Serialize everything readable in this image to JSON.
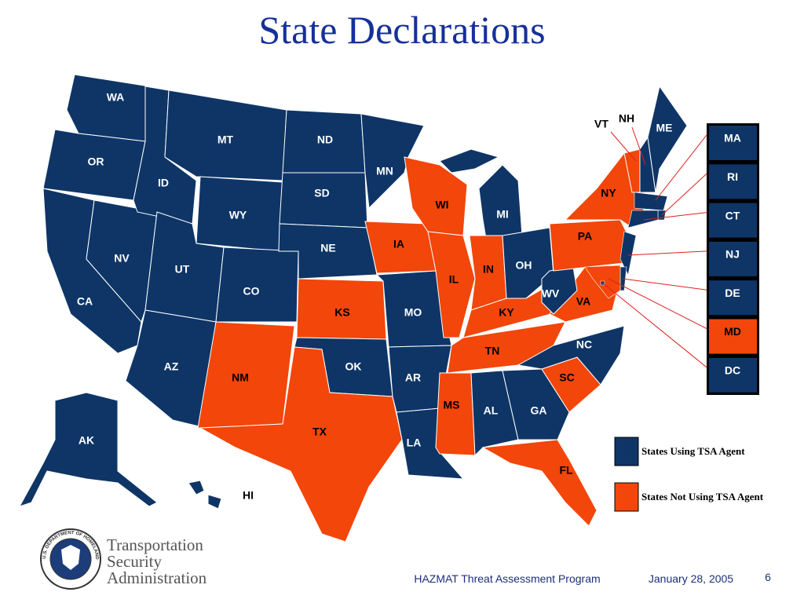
{
  "title": "State Declarations",
  "map": {
    "states": [
      {
        "label": "WA",
        "color": "#0e3566"
      },
      {
        "label": "OR",
        "color": "#0e3566"
      },
      {
        "label": "CA",
        "color": "#0e3566"
      },
      {
        "label": "NV",
        "color": "#0e3566"
      },
      {
        "label": "ID",
        "color": "#0e3566"
      },
      {
        "label": "MT",
        "color": "#0e3566"
      },
      {
        "label": "WY",
        "color": "#0e3566"
      },
      {
        "label": "UT",
        "color": "#0e3566"
      },
      {
        "label": "CO",
        "color": "#0e3566"
      },
      {
        "label": "AZ",
        "color": "#0e3566"
      },
      {
        "label": "NM",
        "color": "#f2460a"
      },
      {
        "label": "ND",
        "color": "#0e3566"
      },
      {
        "label": "SD",
        "color": "#0e3566"
      },
      {
        "label": "NE",
        "color": "#0e3566"
      },
      {
        "label": "KS",
        "color": "#f2460a"
      },
      {
        "label": "OK",
        "color": "#0e3566"
      },
      {
        "label": "TX",
        "color": "#f2460a"
      },
      {
        "label": "MN",
        "color": "#0e3566"
      },
      {
        "label": "IA",
        "color": "#f2460a"
      },
      {
        "label": "MO",
        "color": "#0e3566"
      },
      {
        "label": "AR",
        "color": "#0e3566"
      },
      {
        "label": "LA",
        "color": "#0e3566"
      },
      {
        "label": "WI",
        "color": "#f2460a"
      },
      {
        "label": "IL",
        "color": "#f2460a"
      },
      {
        "label": "MI",
        "color": "#0e3566"
      },
      {
        "label": "IN",
        "color": "#f2460a"
      },
      {
        "label": "OH",
        "color": "#0e3566"
      },
      {
        "label": "KY",
        "color": "#f2460a"
      },
      {
        "label": "TN",
        "color": "#f2460a"
      },
      {
        "label": "MS",
        "color": "#f2460a"
      },
      {
        "label": "AL",
        "color": "#0e3566"
      },
      {
        "label": "GA",
        "color": "#0e3566"
      },
      {
        "label": "FL",
        "color": "#f2460a"
      },
      {
        "label": "SC",
        "color": "#f2460a"
      },
      {
        "label": "NC",
        "color": "#0e3566"
      },
      {
        "label": "VA",
        "color": "#f2460a"
      },
      {
        "label": "WV",
        "color": "#0e3566"
      },
      {
        "label": "PA",
        "color": "#f2460a"
      },
      {
        "label": "NY",
        "color": "#f2460a"
      },
      {
        "label": "VT",
        "color": "#f2460a"
      },
      {
        "label": "NH",
        "color": "#0e3566"
      },
      {
        "label": "ME",
        "color": "#0e3566"
      },
      {
        "label": "AK",
        "color": "#0e3566"
      },
      {
        "label": "HI",
        "color": "#0e3566"
      }
    ],
    "callouts": [
      {
        "label": "MA",
        "color": "#0e3566"
      },
      {
        "label": "RI",
        "color": "#0e3566"
      },
      {
        "label": "CT",
        "color": "#0e3566"
      },
      {
        "label": "NJ",
        "color": "#0e3566"
      },
      {
        "label": "DE",
        "color": "#0e3566"
      },
      {
        "label": "MD",
        "color": "#f2460a"
      },
      {
        "label": "DC",
        "color": "#0e3566"
      }
    ],
    "legend": [
      {
        "label": "States Using TSA Agent",
        "color": "#0e3566"
      },
      {
        "label": "States Not Using TSA Agent",
        "color": "#f2460a"
      }
    ]
  },
  "logo": {
    "seal": "U.S. DEPARTMENT OF HOMELAND SECURITY",
    "lines": [
      "Transportation",
      "Security",
      "Administration"
    ]
  },
  "footer": {
    "program": "HAZMAT Threat Assessment Program",
    "date": "January 28, 2005",
    "page": "6"
  }
}
